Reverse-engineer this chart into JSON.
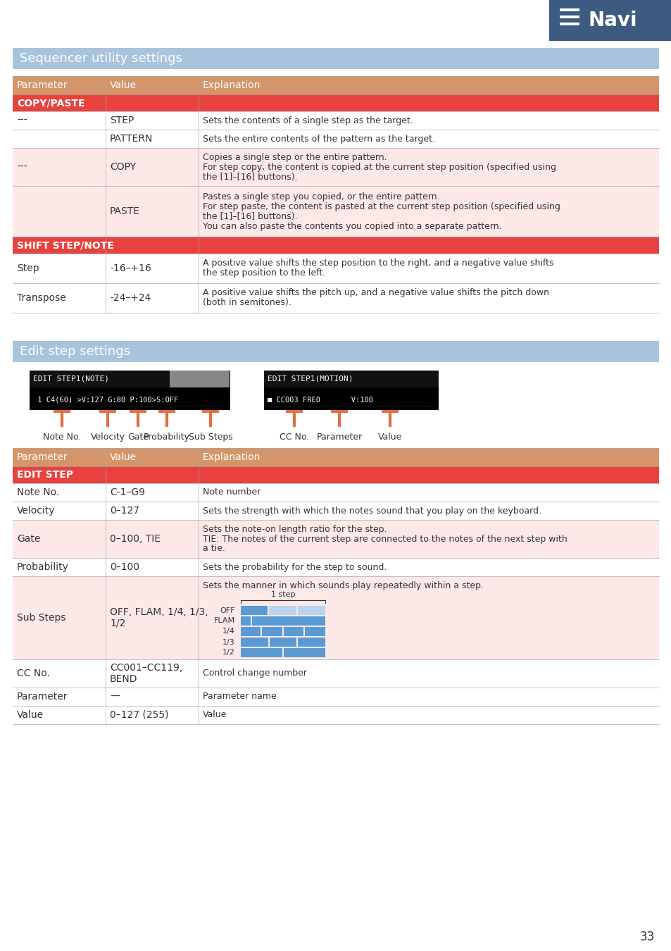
{
  "page_bg": "#ffffff",
  "navi_bg": "#3d5a80",
  "navi_text": "Navi",
  "page_number": "33",
  "section1_title": "Sequencer utility settings",
  "section1_header_bg": "#a8c4dc",
  "section1_header_text_color": "#ffffff",
  "section2_title": "Edit step settings",
  "section2_header_bg": "#a8c4dc",
  "section2_header_text_color": "#ffffff",
  "table_header_bg": "#d4956a",
  "table_header_text_color": "#ffffff",
  "section_row_bg": "#e8413e",
  "section_row_text_color": "#ffffff",
  "alt_row_bg": "#fde8e8",
  "normal_row_bg": "#ffffff",
  "divider_color": "#aaaaaa",
  "text_color": "#333333",
  "arrow_color": "#e07040",
  "lcd_bg": "#000000",
  "lcd_text_color": "#ffffff",
  "lcd1_line1": "EDIT STEP1(NOTE)",
  "lcd1_line2": " 1 C4(60) >V:127 G:80 P:100>S:OFF",
  "lcd2_line1": "EDIT STEP1(MOTION)",
  "lcd2_line2": "■ CC003 FRE0       V:100",
  "bar_blue": "#5b9bd5",
  "bar_light": "#b8d4ee"
}
